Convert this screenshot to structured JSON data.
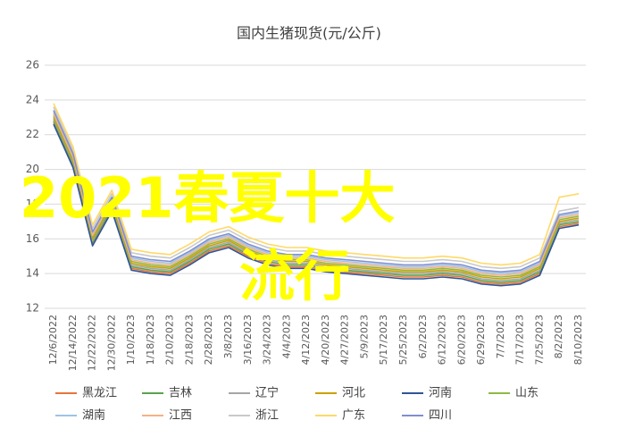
{
  "chart_data": {
    "type": "line",
    "title": "国内生猪现货(元/公斤)",
    "overlay_text": [
      "2021春夏十大",
      "流行"
    ],
    "categories": [
      "12/6/2022",
      "12/14/2022",
      "12/22/2022",
      "12/30/2022",
      "1/10/2023",
      "1/18/2023",
      "2/10/2023",
      "2/18/2023",
      "2/28/2023",
      "3/8/2023",
      "3/16/2023",
      "3/24/2023",
      "4/4/2023",
      "4/12/2023",
      "4/20/2023",
      "4/27/2023",
      "5/9/2023",
      "5/17/2023",
      "5/25/2023",
      "6/2/2023",
      "6/12/2023",
      "6/20/2023",
      "6/29/2023",
      "7/7/2023",
      "7/17/2023",
      "7/25/2023",
      "8/2/2023",
      "8/10/2023"
    ],
    "ylim": [
      12,
      26
    ],
    "yticks": [
      12,
      14,
      16,
      18,
      20,
      22,
      24,
      26
    ],
    "grid": true,
    "series": [
      {
        "name": "黑龙江",
        "color": "#e8743b",
        "values": [
          22.7,
          20.2,
          15.7,
          17.7,
          14.3,
          14.1,
          14.0,
          14.6,
          15.3,
          15.6,
          15.0,
          14.6,
          14.4,
          14.4,
          14.2,
          14.1,
          14.0,
          13.9,
          13.8,
          13.8,
          13.9,
          13.8,
          13.5,
          13.4,
          13.5,
          14.0,
          16.7,
          16.9
        ]
      },
      {
        "name": "吉林",
        "color": "#5ba350",
        "values": [
          22.8,
          20.3,
          15.8,
          17.8,
          14.4,
          14.2,
          14.1,
          14.7,
          15.4,
          15.7,
          15.1,
          14.7,
          14.5,
          14.5,
          14.3,
          14.2,
          14.1,
          14.0,
          13.9,
          13.9,
          14.0,
          13.9,
          13.6,
          13.5,
          13.6,
          14.1,
          16.8,
          17.0
        ]
      },
      {
        "name": "辽宁",
        "color": "#a5a5a5",
        "values": [
          22.9,
          20.4,
          15.9,
          17.9,
          14.5,
          14.3,
          14.2,
          14.8,
          15.5,
          15.8,
          15.2,
          14.8,
          14.6,
          14.6,
          14.4,
          14.3,
          14.2,
          14.1,
          14.0,
          14.0,
          14.1,
          14.0,
          13.7,
          13.6,
          13.7,
          14.2,
          16.9,
          17.1
        ]
      },
      {
        "name": "河北",
        "color": "#c9a100",
        "values": [
          23.0,
          20.5,
          16.0,
          18.0,
          14.6,
          14.4,
          14.3,
          14.9,
          15.6,
          15.9,
          15.3,
          14.9,
          14.7,
          14.7,
          14.5,
          14.4,
          14.3,
          14.2,
          14.1,
          14.1,
          14.2,
          14.1,
          13.8,
          13.7,
          13.8,
          14.3,
          17.0,
          17.2
        ]
      },
      {
        "name": "河南",
        "color": "#2f5597",
        "values": [
          22.6,
          20.1,
          15.6,
          17.6,
          14.2,
          14.0,
          13.9,
          14.5,
          15.2,
          15.5,
          14.9,
          14.5,
          14.3,
          14.3,
          14.1,
          14.0,
          13.9,
          13.8,
          13.7,
          13.7,
          13.8,
          13.7,
          13.4,
          13.3,
          13.4,
          13.9,
          16.6,
          16.8
        ]
      },
      {
        "name": "山东",
        "color": "#8fb845",
        "values": [
          23.1,
          20.6,
          16.1,
          18.1,
          14.7,
          14.5,
          14.4,
          15.0,
          15.7,
          16.0,
          15.4,
          15.0,
          14.8,
          14.8,
          14.6,
          14.5,
          14.4,
          14.3,
          14.2,
          14.2,
          14.3,
          14.2,
          13.9,
          13.8,
          13.9,
          14.4,
          17.1,
          17.3
        ]
      },
      {
        "name": "湖南",
        "color": "#9dc3e6",
        "values": [
          23.3,
          20.8,
          16.3,
          18.3,
          14.9,
          14.7,
          14.6,
          15.2,
          15.9,
          16.2,
          15.6,
          15.2,
          15.0,
          15.0,
          14.8,
          14.7,
          14.6,
          14.5,
          14.4,
          14.4,
          14.5,
          14.4,
          14.1,
          14.0,
          14.1,
          14.6,
          17.3,
          17.5
        ]
      },
      {
        "name": "江西",
        "color": "#f4b183",
        "values": [
          23.2,
          20.7,
          16.2,
          18.2,
          14.8,
          14.6,
          14.5,
          15.1,
          15.8,
          16.1,
          15.5,
          15.1,
          14.9,
          14.9,
          14.7,
          14.6,
          14.5,
          14.4,
          14.3,
          14.3,
          14.4,
          14.3,
          14.0,
          13.9,
          14.0,
          14.5,
          17.2,
          17.4
        ]
      },
      {
        "name": "浙江",
        "color": "#c9c9c9",
        "values": [
          23.6,
          21.1,
          16.6,
          18.6,
          15.2,
          15.0,
          14.9,
          15.5,
          16.2,
          16.5,
          15.9,
          15.5,
          15.3,
          15.3,
          15.1,
          15.0,
          14.9,
          14.8,
          14.7,
          14.7,
          14.8,
          14.7,
          14.4,
          14.3,
          14.4,
          14.9,
          17.6,
          17.8
        ]
      },
      {
        "name": "广东",
        "color": "#ffd966",
        "values": [
          23.8,
          21.3,
          16.8,
          18.8,
          15.4,
          15.2,
          15.1,
          15.7,
          16.4,
          16.7,
          16.1,
          15.7,
          15.5,
          15.5,
          15.3,
          15.2,
          15.1,
          15.0,
          14.9,
          14.9,
          15.0,
          14.9,
          14.6,
          14.5,
          14.6,
          15.1,
          18.4,
          18.6
        ]
      },
      {
        "name": "四川",
        "color": "#7f8fd0",
        "values": [
          23.4,
          20.9,
          16.4,
          18.4,
          15.0,
          14.8,
          14.7,
          15.3,
          16.0,
          16.3,
          15.7,
          15.3,
          15.1,
          15.1,
          14.9,
          14.8,
          14.7,
          14.6,
          14.5,
          14.5,
          14.6,
          14.5,
          14.2,
          14.1,
          14.2,
          14.7,
          17.4,
          17.6
        ]
      }
    ]
  }
}
